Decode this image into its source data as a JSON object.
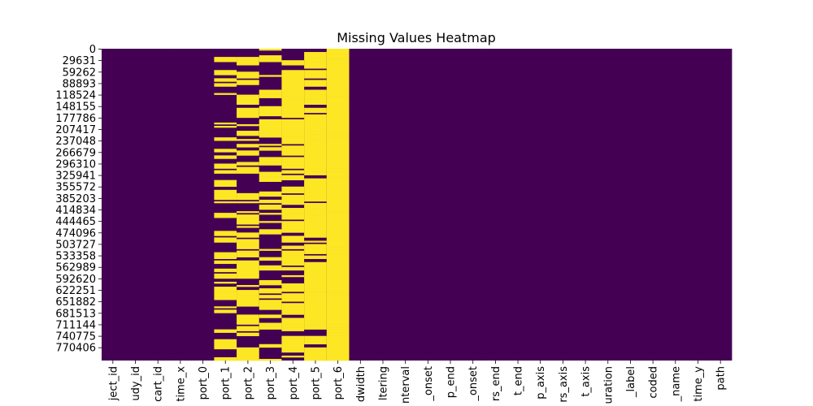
{
  "chart_data": {
    "type": "heatmap",
    "title": "Missing Values Heatmap",
    "xlabel": "",
    "ylabel": "",
    "columns": [
      "ject_id",
      "udy_id",
      "cart_id",
      "time_x",
      "port_0",
      "port_1",
      "port_2",
      "port_3",
      "port_4",
      "port_5",
      "port_6",
      "dwidth",
      "ltering",
      "nterval",
      "_onset",
      "p_end",
      "_onset",
      "rs_end",
      "t_end",
      "p_axis",
      "rs_axis",
      "t_axis",
      "uration",
      "_label",
      "coded",
      "_name",
      "time_y",
      "path"
    ],
    "y_ticks": [
      "0",
      "29631",
      "59262",
      "88893",
      "118524",
      "148155",
      "177786",
      "207417",
      "237048",
      "266679",
      "296310",
      "325941",
      "355572",
      "385203",
      "414834",
      "444465",
      "474096",
      "503727",
      "533358",
      "562989",
      "592620",
      "622251",
      "651882",
      "681513",
      "711144",
      "740775",
      "770406"
    ],
    "missing_fraction": [
      0,
      0,
      0,
      0,
      0,
      0.35,
      0.5,
      0.45,
      0.65,
      0.85,
      0.97,
      0,
      0,
      0,
      0,
      0,
      0,
      0,
      0,
      0,
      0,
      0,
      0,
      0,
      0,
      0,
      0,
      0
    ],
    "colors": {
      "missing": "#fde725",
      "present": "#440154"
    },
    "grid": false,
    "legend": "none"
  }
}
